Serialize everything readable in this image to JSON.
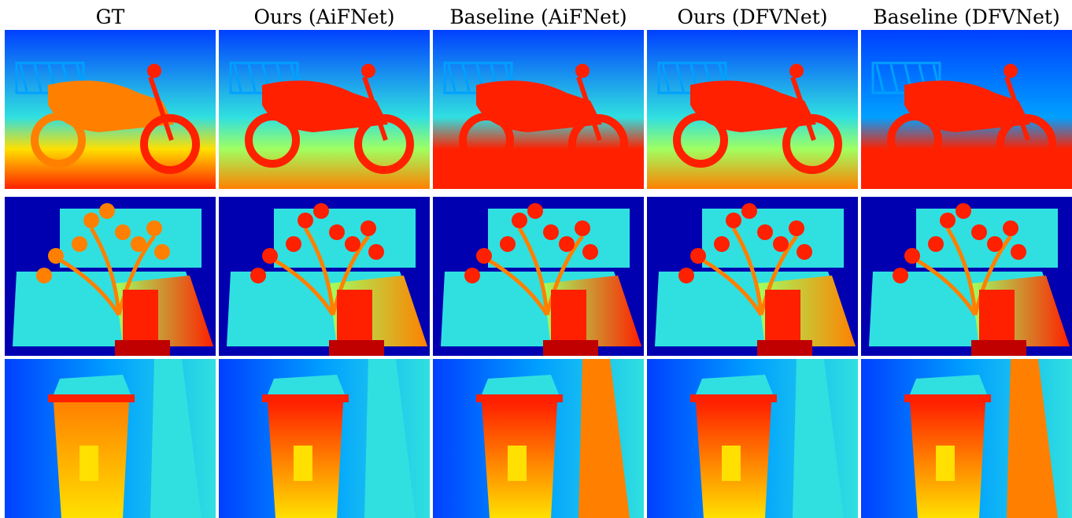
{
  "columns": [
    "GT",
    "Ours (AiFNet)",
    "Baseline (AiFNet)",
    "Ours (DFVNet)",
    "Baseline (DFVNet)"
  ],
  "rows": [
    {
      "scene": "motorcycle"
    },
    {
      "scene": "plant"
    },
    {
      "scene": "trash-bin"
    }
  ],
  "colormap": [
    "#0000b0",
    "#0040ff",
    "#00a0ff",
    "#30e0e0",
    "#a0ff60",
    "#ffe000",
    "#ff8000",
    "#ff2000",
    "#c00000"
  ]
}
